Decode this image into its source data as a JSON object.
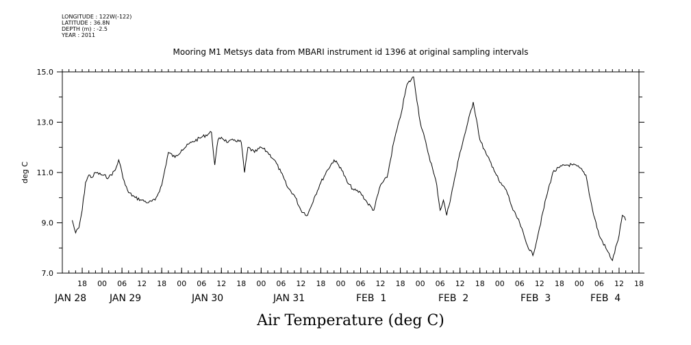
{
  "header": {
    "longitude": "LONGITUDE : 122W(-122)",
    "latitude": "LATITUDE : 36.8N",
    "depth": "DEPTH (m) : -2.5",
    "year": "YEAR : 2011"
  },
  "chart_data": {
    "type": "line",
    "title": "Mooring M1 Metsys data from MBARI instrument id 1396 at original sampling intervals",
    "xlabel": "Air Temperature (deg C)",
    "ylabel": "deg C",
    "xlim": [
      "2011-01-28T12:00",
      "2011-02-04T18:00"
    ],
    "ylim": [
      7.0,
      15.0
    ],
    "y_ticks": [
      "7.0",
      "9.0",
      "11.0",
      "13.0",
      "15.0"
    ],
    "hour_ticks": [
      "18",
      "00",
      "06",
      "12",
      "18",
      "00",
      "06",
      "12",
      "18",
      "00",
      "06",
      "12",
      "18",
      "00",
      "06",
      "12",
      "18",
      "00",
      "06",
      "12",
      "18",
      "00",
      "06",
      "12",
      "18",
      "00",
      "06",
      "12",
      "18"
    ],
    "date_labels": [
      "JAN 28",
      "JAN 29",
      "JAN 30",
      "JAN 31",
      "FEB  1",
      "FEB  2",
      "FEB  3",
      "FEB  4"
    ],
    "grid": false,
    "series": [
      {
        "x": [
          "2011-01-28T15:00",
          "2011-01-28T16:00",
          "2011-01-28T17:00",
          "2011-01-28T18:00",
          "2011-01-28T19:00",
          "2011-01-28T20:00",
          "2011-01-28T21:00",
          "2011-01-28T22:00",
          "2011-01-29T00:00",
          "2011-01-29T02:00",
          "2011-01-29T04:00",
          "2011-01-29T05:00",
          "2011-01-29T06:00",
          "2011-01-29T07:00",
          "2011-01-29T08:00",
          "2011-01-29T10:00",
          "2011-01-29T12:00",
          "2011-01-29T14:00",
          "2011-01-29T16:00",
          "2011-01-29T18:00",
          "2011-01-29T20:00",
          "2011-01-29T22:00",
          "2011-01-30T00:00",
          "2011-01-30T03:00",
          "2011-01-30T06:00",
          "2011-01-30T09:00",
          "2011-01-30T10:00",
          "2011-01-30T11:00",
          "2011-01-30T12:00",
          "2011-01-30T14:00",
          "2011-01-30T16:00",
          "2011-01-30T18:00",
          "2011-01-30T19:00",
          "2011-01-30T20:00",
          "2011-01-30T22:00",
          "2011-01-31T00:00",
          "2011-01-31T02:00",
          "2011-01-31T04:00",
          "2011-01-31T06:00",
          "2011-01-31T08:00",
          "2011-01-31T10:00",
          "2011-01-31T12:00",
          "2011-01-31T14:00",
          "2011-01-31T16:00",
          "2011-01-31T18:00",
          "2011-01-31T20:00",
          "2011-01-31T22:00",
          "2011-02-01T00:00",
          "2011-02-01T02:00",
          "2011-02-01T04:00",
          "2011-02-01T06:00",
          "2011-02-01T08:00",
          "2011-02-01T10:00",
          "2011-02-01T12:00",
          "2011-02-01T14:00",
          "2011-02-01T16:00",
          "2011-02-01T18:00",
          "2011-02-01T20:00",
          "2011-02-01T22:00",
          "2011-02-02T00:00",
          "2011-02-02T02:00",
          "2011-02-02T04:00",
          "2011-02-02T05:00",
          "2011-02-02T06:00",
          "2011-02-02T07:00",
          "2011-02-02T08:00",
          "2011-02-02T10:00",
          "2011-02-02T12:00",
          "2011-02-02T14:00",
          "2011-02-02T16:00",
          "2011-02-02T17:00",
          "2011-02-02T18:00",
          "2011-02-02T20:00",
          "2011-02-02T22:00",
          "2011-02-03T00:00",
          "2011-02-03T02:00",
          "2011-02-03T04:00",
          "2011-02-03T06:00",
          "2011-02-03T08:00",
          "2011-02-03T10:00",
          "2011-02-03T12:00",
          "2011-02-03T14:00",
          "2011-02-03T16:00",
          "2011-02-03T18:00",
          "2011-02-03T20:00",
          "2011-02-03T22:00",
          "2011-02-04T00:00",
          "2011-02-04T02:00",
          "2011-02-04T04:00",
          "2011-02-04T06:00",
          "2011-02-04T08:00",
          "2011-02-04T10:00",
          "2011-02-04T12:00",
          "2011-02-04T13:00",
          "2011-02-04T14:00"
        ],
        "y": [
          9.1,
          8.6,
          8.8,
          9.5,
          10.6,
          10.9,
          10.8,
          11.0,
          10.9,
          10.8,
          11.1,
          11.5,
          11.0,
          10.5,
          10.2,
          10.0,
          9.9,
          9.8,
          9.9,
          10.5,
          11.8,
          11.6,
          11.9,
          12.2,
          12.4,
          12.6,
          11.3,
          12.3,
          12.4,
          12.2,
          12.3,
          12.2,
          11.0,
          12.0,
          11.8,
          12.0,
          11.8,
          11.5,
          11.0,
          10.4,
          10.1,
          9.5,
          9.3,
          10.0,
          10.6,
          11.1,
          11.5,
          11.2,
          10.6,
          10.3,
          10.2,
          9.8,
          9.5,
          10.5,
          10.8,
          12.2,
          13.2,
          14.5,
          14.8,
          13.0,
          12.0,
          11.0,
          10.5,
          9.5,
          9.9,
          9.3,
          10.5,
          11.8,
          12.8,
          13.8,
          13.1,
          12.3,
          11.7,
          11.2,
          10.6,
          10.3,
          9.5,
          9.0,
          8.2,
          7.7,
          8.8,
          10.0,
          11.0,
          11.2,
          11.3,
          11.3,
          11.2,
          10.9,
          9.5,
          8.5,
          8.0,
          7.5,
          8.5,
          9.3,
          9.1
        ]
      }
    ]
  }
}
